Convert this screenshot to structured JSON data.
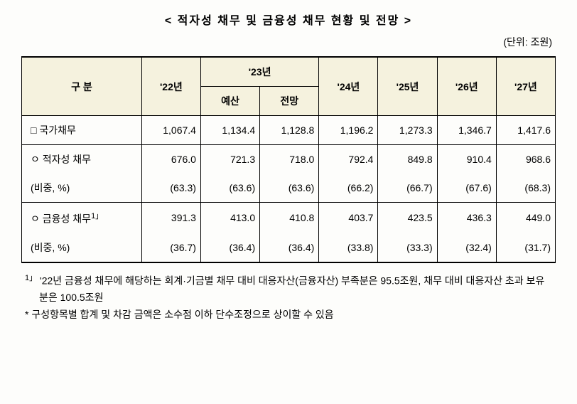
{
  "title": "< 적자성 채무 및 금융성 채무 현황 및 전망 >",
  "unit": "(단위: 조원)",
  "header": {
    "col1": "구  분",
    "y22": "'22년",
    "y23": "'23년",
    "y23_budget": "예산",
    "y23_outlook": "전망",
    "y24": "'24년",
    "y25": "'25년",
    "y26": "'26년",
    "y27": "'27년"
  },
  "rows": {
    "r1": {
      "label": "□ 국가채무",
      "v22": "1,067.4",
      "v23b": "1,134.4",
      "v23o": "1,128.8",
      "v24": "1,196.2",
      "v25": "1,273.3",
      "v26": "1,346.7",
      "v27": "1,417.6"
    },
    "r2": {
      "label": " ㅇ 적자성 채무",
      "v22": "676.0",
      "v23b": "721.3",
      "v23o": "718.0",
      "v24": "792.4",
      "v25": "849.8",
      "v26": "910.4",
      "v27": "968.6"
    },
    "r3": {
      "label": "    (비중, %)",
      "v22": "(63.3)",
      "v23b": "(63.6)",
      "v23o": "(63.6)",
      "v24": "(66.2)",
      "v25": "(66.7)",
      "v26": "(67.6)",
      "v27": "(68.3)"
    },
    "r4": {
      "label_prefix": " ㅇ 금융성 채무",
      "label_sup": "1」",
      "v22": "391.3",
      "v23b": "413.0",
      "v23o": "410.8",
      "v24": "403.7",
      "v25": "423.5",
      "v26": "436.3",
      "v27": "449.0"
    },
    "r5": {
      "label": "    (비중, %)",
      "v22": "(36.7)",
      "v23b": "(36.4)",
      "v23o": "(36.4)",
      "v24": "(33.8)",
      "v25": "(33.3)",
      "v26": "(32.4)",
      "v27": "(31.7)"
    }
  },
  "footnote": {
    "f1_sup": "1」",
    "f1_text": " '22년 금융성 채무에 해당하는 회계·기금별 채무 대비 대응자산(금융자산) 부족분은 95.5조원, 채무 대비 대응자산 초과 보유분은 100.5조원",
    "f2": " * 구성항목별 합계 및 차감 금액은 소수점 이하 단수조정으로 상이할 수 있음"
  },
  "colors": {
    "header_bg": "#f5f2de",
    "background": "#fdfdfb",
    "border": "#000000",
    "text": "#000000"
  },
  "typography": {
    "title_fontsize": 16,
    "body_fontsize": 14,
    "font_family": "Malgun Gothic"
  }
}
